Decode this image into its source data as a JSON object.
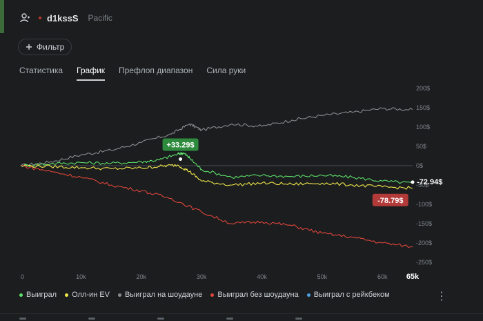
{
  "header": {
    "player_name": "d1kssS",
    "region": "Pacific"
  },
  "filter": {
    "label": "Фильтр"
  },
  "tabs": [
    {
      "label": "Статистика",
      "active": false
    },
    {
      "label": "График",
      "active": true
    },
    {
      "label": "Префлоп диапазон",
      "active": false
    },
    {
      "label": "Сила руки",
      "active": false
    }
  ],
  "legend": [
    {
      "label": "Выиграл",
      "color": "#5ee06a"
    },
    {
      "label": "Олл-ин EV",
      "color": "#f2e84b"
    },
    {
      "label": "Выиграл на шоудауне",
      "color": "#8a8d90"
    },
    {
      "label": "Выиграл без шоудауна",
      "color": "#e0463b"
    },
    {
      "label": "Выиграл с рейкбеком",
      "color": "#4aa3e0"
    }
  ],
  "chart_data": {
    "type": "line",
    "x_ticks": [
      "0",
      "10k",
      "20k",
      "30k",
      "40k",
      "50k",
      "60k",
      "65k"
    ],
    "x_tick_values": [
      0,
      10000,
      20000,
      30000,
      40000,
      50000,
      60000,
      65000
    ],
    "xlim": [
      0,
      65000
    ],
    "y_ticks": [
      "200$",
      "150$",
      "100$",
      "50$",
      "0$",
      "-50$",
      "-100$",
      "-150$",
      "-200$",
      "-250$"
    ],
    "y_tick_values": [
      200,
      150,
      100,
      50,
      0,
      -50,
      -100,
      -150,
      -200,
      -250
    ],
    "ylim": [
      -250,
      200
    ],
    "annotations": [
      {
        "label": "+33.29$",
        "x": 26500,
        "y": 17,
        "color": "#2e8b3d"
      },
      {
        "label": "-72.94$",
        "x": 65000,
        "y": -39,
        "color": "transparent"
      },
      {
        "label": "-78.79$",
        "x": 62000,
        "y": -55,
        "color": "#b23a38"
      }
    ],
    "series": [
      {
        "name": "Выиграл на шоудауне",
        "color": "#8a8d90",
        "x": [
          0,
          5000,
          10000,
          15000,
          20000,
          25000,
          28000,
          30000,
          35000,
          40000,
          45000,
          50000,
          55000,
          60000,
          65000
        ],
        "y": [
          0,
          10,
          28,
          40,
          60,
          82,
          108,
          92,
          108,
          102,
          118,
          130,
          138,
          148,
          145
        ]
      },
      {
        "name": "Выиграл",
        "color": "#5ee06a",
        "x": [
          0,
          5000,
          10000,
          15000,
          20000,
          23000,
          26000,
          27000,
          28000,
          30000,
          35000,
          40000,
          45000,
          50000,
          55000,
          60000,
          65000
        ],
        "y": [
          0,
          5,
          8,
          6,
          10,
          15,
          30,
          33,
          20,
          -10,
          -30,
          -25,
          -28,
          -25,
          -30,
          -40,
          -45
        ]
      },
      {
        "name": "Олл-ин EV",
        "color": "#f2e84b",
        "x": [
          0,
          5000,
          10000,
          15000,
          20000,
          23000,
          26000,
          28000,
          30000,
          35000,
          40000,
          45000,
          50000,
          55000,
          60000,
          65000
        ],
        "y": [
          0,
          -2,
          -5,
          -8,
          -6,
          -2,
          2,
          -15,
          -40,
          -50,
          -45,
          -48,
          -45,
          -50,
          -55,
          -58
        ]
      },
      {
        "name": "Выиграл без шоудауна",
        "color": "#e0463b",
        "x": [
          0,
          5000,
          10000,
          15000,
          20000,
          25000,
          30000,
          35000,
          40000,
          45000,
          50000,
          55000,
          60000,
          65000
        ],
        "y": [
          0,
          -15,
          -30,
          -50,
          -65,
          -85,
          -120,
          -150,
          -145,
          -155,
          -175,
          -185,
          -200,
          -210
        ]
      }
    ]
  }
}
